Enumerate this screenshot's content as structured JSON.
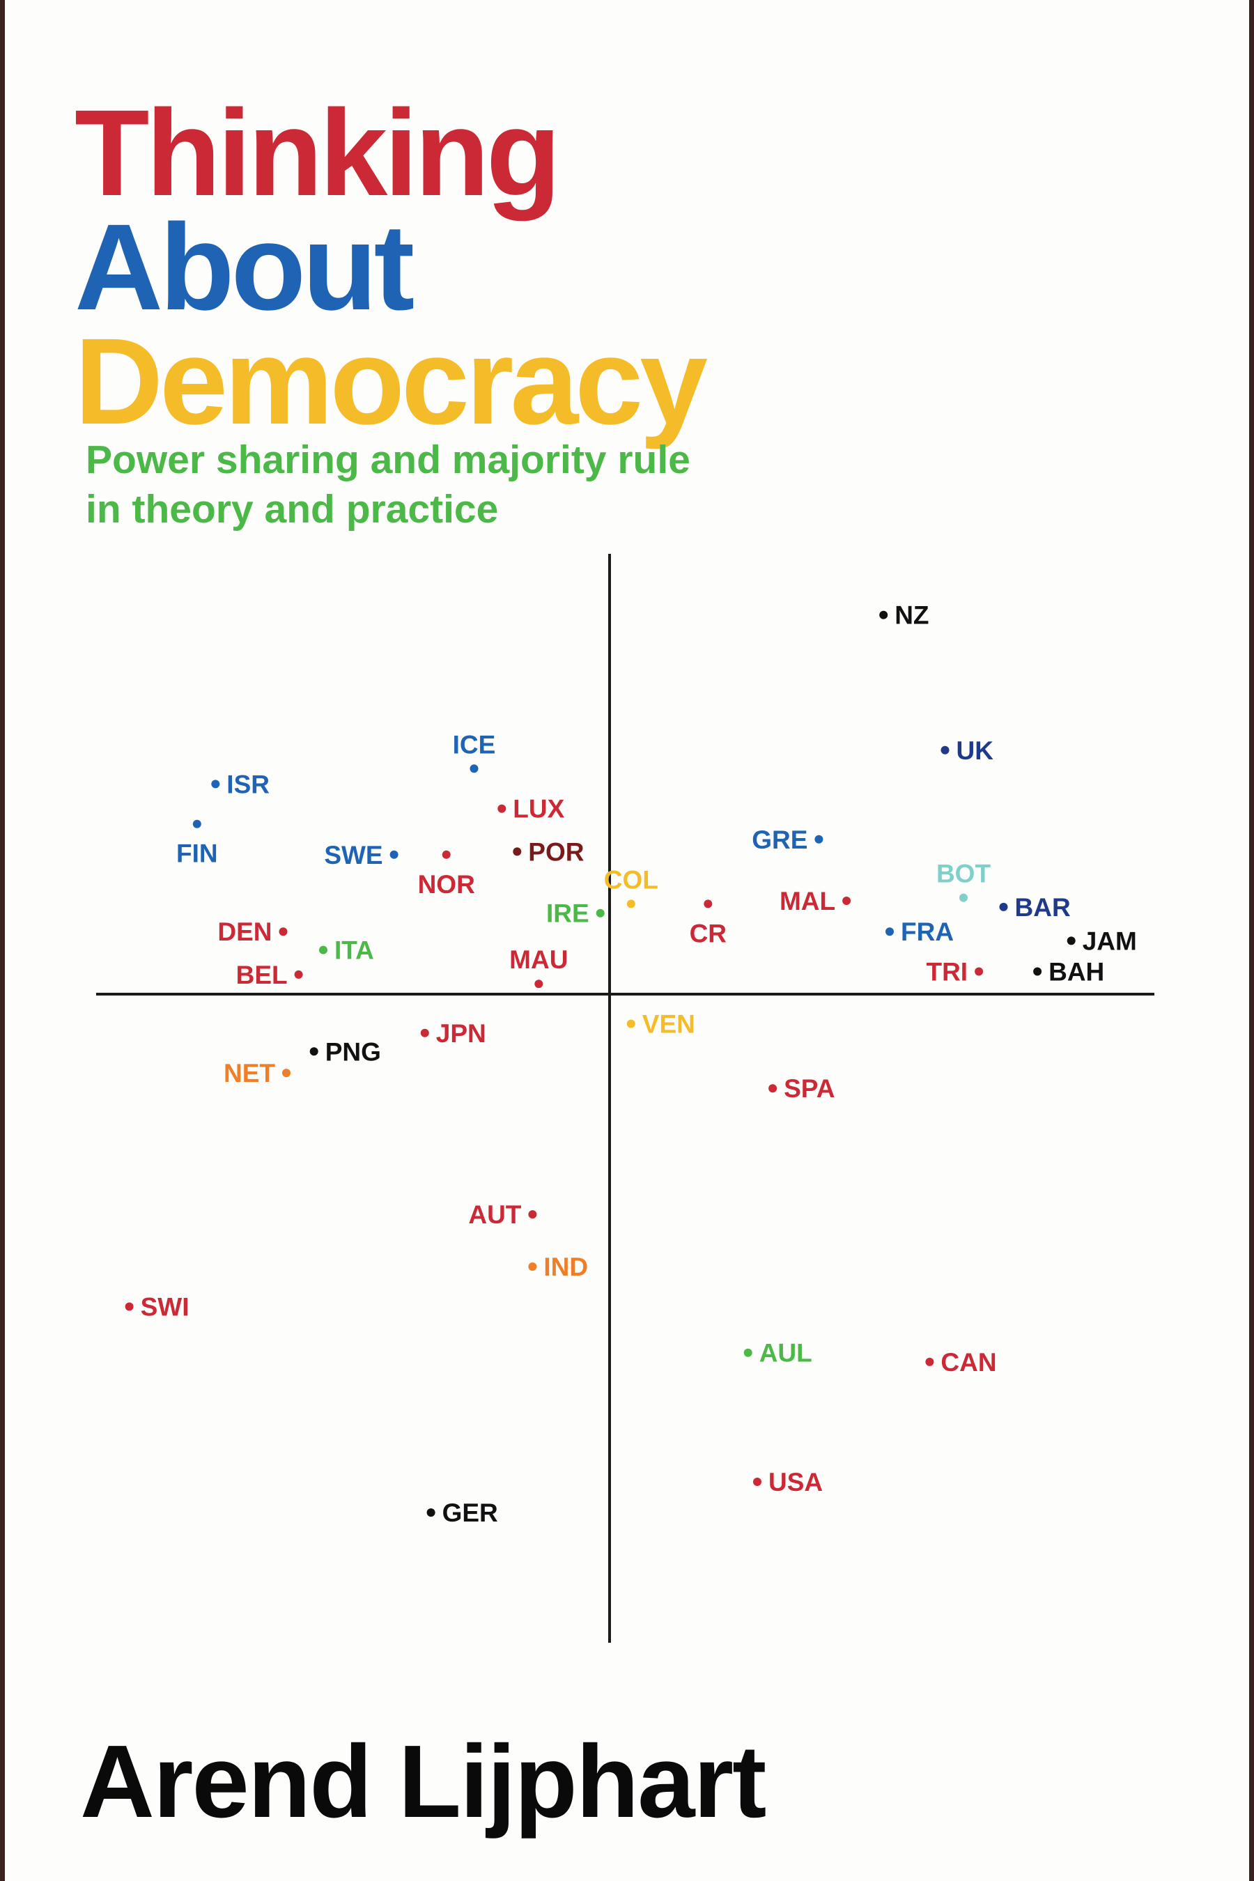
{
  "cover": {
    "title_lines": [
      {
        "text": "Thinking",
        "color": "#cc2936"
      },
      {
        "text": "About",
        "color": "#1f64b4"
      },
      {
        "text": "Democracy",
        "color": "#f5bc2a"
      }
    ],
    "subtitle_lines": [
      "Power sharing and majority rule",
      "in theory and practice"
    ],
    "subtitle_color": "#4cb848",
    "author": "Arend Lijphart",
    "frame_color": "#3a2321",
    "axis_color": "#1a1a1a"
  },
  "chart_data": {
    "type": "scatter",
    "title": "",
    "xlabel": "",
    "ylabel": "",
    "grid": false,
    "xlim": [
      -1.68,
      1.76
    ],
    "ylim": [
      -2.08,
      1.41
    ],
    "points": [
      {
        "label": "NZ",
        "x": 0.88,
        "y": 1.2,
        "color": "#111111",
        "side": "right"
      },
      {
        "label": "UK",
        "x": 1.08,
        "y": 0.76,
        "color": "#1f3a8a",
        "side": "right"
      },
      {
        "label": "ISR",
        "x": -1.29,
        "y": 0.65,
        "color": "#1f64b4",
        "side": "right"
      },
      {
        "label": "ICE",
        "x": -0.45,
        "y": 0.7,
        "color": "#1f64b4",
        "side": "above"
      },
      {
        "label": "LUX",
        "x": -0.36,
        "y": 0.57,
        "color": "#cc2936",
        "side": "right"
      },
      {
        "label": "FIN",
        "x": -1.35,
        "y": 0.52,
        "color": "#1f64b4",
        "side": "below"
      },
      {
        "label": "POR",
        "x": -0.31,
        "y": 0.43,
        "color": "#7a1a1a",
        "side": "right"
      },
      {
        "label": "SWE",
        "x": -0.71,
        "y": 0.42,
        "color": "#1f64b4",
        "side": "left"
      },
      {
        "label": "NOR",
        "x": -0.54,
        "y": 0.42,
        "color": "#cc2936",
        "side": "below"
      },
      {
        "label": "GRE",
        "x": 0.67,
        "y": 0.47,
        "color": "#1f64b4",
        "side": "left"
      },
      {
        "label": "COL",
        "x": 0.06,
        "y": 0.26,
        "color": "#f5bc2a",
        "side": "above"
      },
      {
        "label": "CR",
        "x": 0.31,
        "y": 0.26,
        "color": "#cc2936",
        "side": "below"
      },
      {
        "label": "MAL",
        "x": 0.76,
        "y": 0.27,
        "color": "#cc2936",
        "side": "left"
      },
      {
        "label": "BOT",
        "x": 1.14,
        "y": 0.28,
        "color": "#7fd0c8",
        "side": "above"
      },
      {
        "label": "BAR",
        "x": 1.27,
        "y": 0.25,
        "color": "#1f3a8a",
        "side": "right"
      },
      {
        "label": "IRE",
        "x": -0.04,
        "y": 0.23,
        "color": "#4cb848",
        "side": "left"
      },
      {
        "label": "DEN",
        "x": -1.07,
        "y": 0.17,
        "color": "#cc2936",
        "side": "left"
      },
      {
        "label": "FRA",
        "x": 0.9,
        "y": 0.17,
        "color": "#1f64b4",
        "side": "right"
      },
      {
        "label": "JAM",
        "x": 1.49,
        "y": 0.14,
        "color": "#111111",
        "side": "right"
      },
      {
        "label": "ITA",
        "x": -0.94,
        "y": 0.11,
        "color": "#4cb848",
        "side": "right"
      },
      {
        "label": "MAU",
        "x": -0.24,
        "y": 0.0,
        "color": "#cc2936",
        "side": "above"
      },
      {
        "label": "BEL",
        "x": -1.02,
        "y": 0.03,
        "color": "#cc2936",
        "side": "left"
      },
      {
        "label": "TRI",
        "x": 1.19,
        "y": 0.04,
        "color": "#cc2936",
        "side": "left"
      },
      {
        "label": "BAH",
        "x": 1.38,
        "y": 0.04,
        "color": "#111111",
        "side": "right"
      },
      {
        "label": "VEN",
        "x": 0.06,
        "y": -0.13,
        "color": "#f5bc2a",
        "side": "right"
      },
      {
        "label": "JPN",
        "x": -0.61,
        "y": -0.16,
        "color": "#cc2936",
        "side": "right"
      },
      {
        "label": "PNG",
        "x": -0.97,
        "y": -0.22,
        "color": "#111111",
        "side": "right"
      },
      {
        "label": "NET",
        "x": -1.06,
        "y": -0.29,
        "color": "#f07e26",
        "side": "left"
      },
      {
        "label": "SPA",
        "x": 0.52,
        "y": -0.34,
        "color": "#cc2936",
        "side": "right"
      },
      {
        "label": "AUT",
        "x": -0.26,
        "y": -0.75,
        "color": "#cc2936",
        "side": "left"
      },
      {
        "label": "IND",
        "x": -0.26,
        "y": -0.92,
        "color": "#f07e26",
        "side": "right"
      },
      {
        "label": "SWI",
        "x": -1.57,
        "y": -1.05,
        "color": "#cc2936",
        "side": "right"
      },
      {
        "label": "AUL",
        "x": 0.44,
        "y": -1.2,
        "color": "#4cb848",
        "side": "right"
      },
      {
        "label": "CAN",
        "x": 1.03,
        "y": -1.23,
        "color": "#cc2936",
        "side": "right"
      },
      {
        "label": "USA",
        "x": 0.47,
        "y": -1.62,
        "color": "#cc2936",
        "side": "right"
      },
      {
        "label": "GER",
        "x": -0.59,
        "y": -1.72,
        "color": "#111111",
        "side": "right"
      }
    ]
  }
}
